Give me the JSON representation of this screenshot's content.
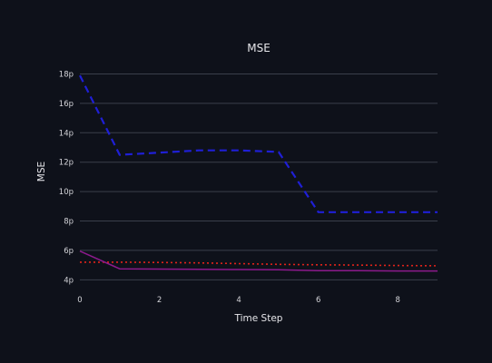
{
  "chart_data": {
    "type": "line",
    "title": "MSE",
    "xlabel": "Time Step",
    "ylabel": "MSE",
    "x": [
      0,
      1,
      2,
      3,
      4,
      5,
      6,
      7,
      8,
      9
    ],
    "xlim": [
      0,
      9
    ],
    "ylim": [
      3.65,
      18.4
    ],
    "x_ticks": [
      0,
      2,
      4,
      6,
      8
    ],
    "x_tick_labels": [
      "0",
      "2",
      "4",
      "6",
      "8"
    ],
    "y_ticks": [
      4,
      6,
      8,
      10,
      12,
      14,
      16,
      18
    ],
    "y_tick_labels": [
      "4p",
      "6p",
      "8p",
      "10p",
      "12p",
      "14p",
      "16p",
      "18p"
    ],
    "grid": true,
    "legend": "none",
    "series": [
      {
        "values": [
          17.9,
          12.5,
          12.65,
          12.8,
          12.8,
          12.7,
          8.6,
          8.6,
          8.6,
          8.6
        ],
        "color": "#1f1fd6",
        "dash": "dashed"
      },
      {
        "values": [
          5.2,
          5.2,
          5.18,
          5.15,
          5.1,
          5.05,
          5.02,
          5.0,
          4.97,
          4.95
        ],
        "color": "#e2231a",
        "dash": "dotted"
      },
      {
        "values": [
          5.95,
          4.75,
          4.73,
          4.72,
          4.7,
          4.68,
          4.62,
          4.62,
          4.6,
          4.6
        ],
        "color": "#8c1a8c",
        "dash": "solid"
      }
    ]
  }
}
